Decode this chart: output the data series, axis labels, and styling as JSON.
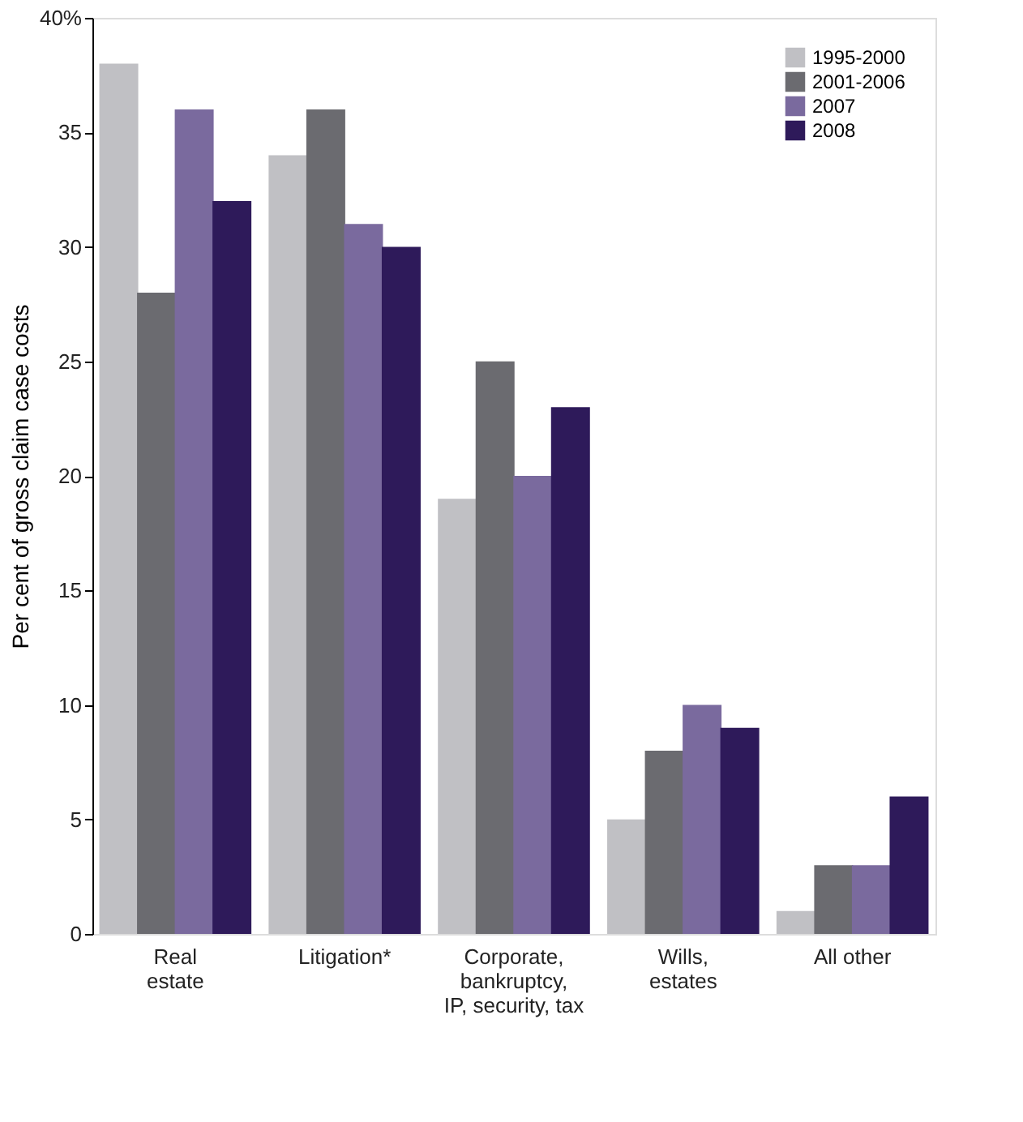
{
  "chart_data": {
    "type": "bar",
    "ylabel": "Per cent of gross claim case costs",
    "categories": [
      "Real\nestate",
      "Litigation*",
      "Corporate,\nbankruptcy,\nIP, security, tax",
      "Wills,\nestates",
      "All other"
    ],
    "series": [
      {
        "name": "1995-2000",
        "color": "#c0c0c4",
        "values": [
          38,
          34,
          19,
          5,
          1
        ]
      },
      {
        "name": "2001-2006",
        "color": "#6b6b70",
        "values": [
          28,
          36,
          25,
          8,
          3
        ]
      },
      {
        "name": "2007",
        "color": "#7a6a9e",
        "values": [
          36,
          31,
          20,
          10,
          3
        ]
      },
      {
        "name": "2008",
        "color": "#2e1a5a",
        "values": [
          32,
          30,
          23,
          9,
          6
        ]
      }
    ],
    "ylim": [
      0,
      40
    ],
    "yticks": [
      0,
      5,
      10,
      15,
      20,
      25,
      30,
      35,
      {
        "value": 40,
        "label": "40%"
      }
    ],
    "grid": false,
    "legend": "top right"
  }
}
